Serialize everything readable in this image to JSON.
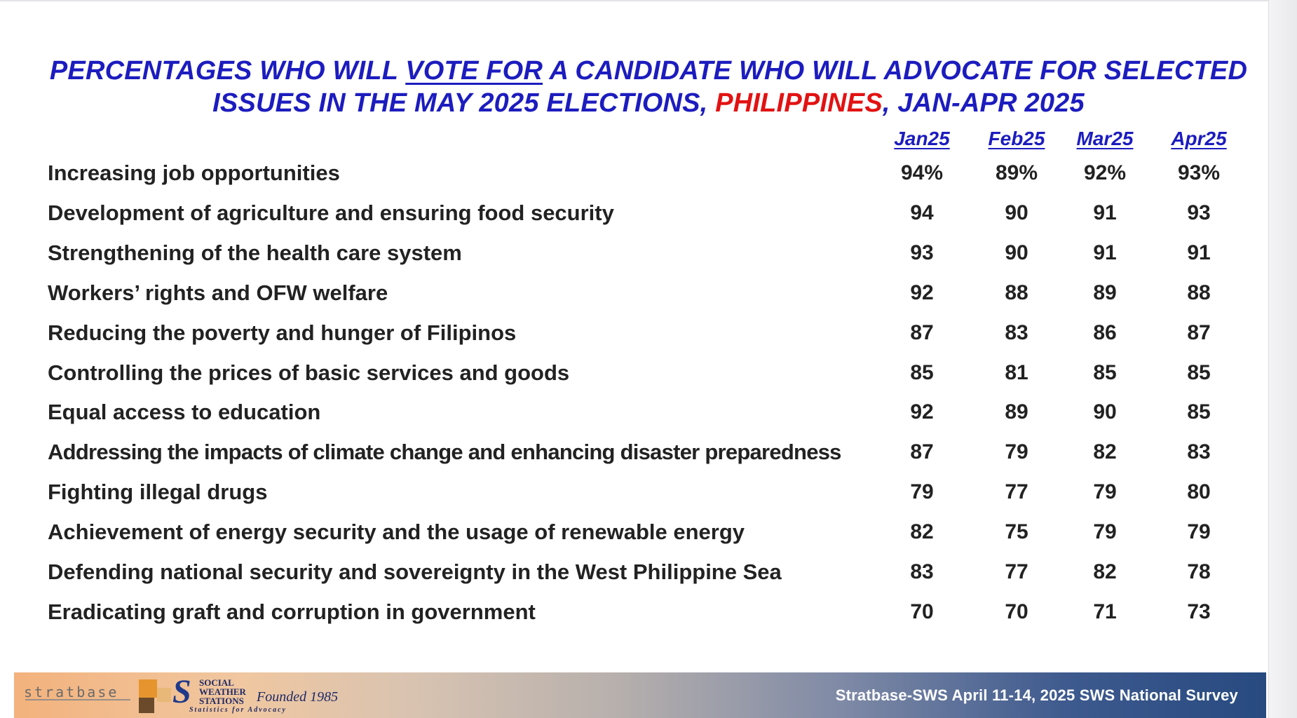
{
  "title": {
    "line1_pre": "PERCENTAGES WHO WILL ",
    "line1_underlined": "VOTE FOR",
    "line1_post": " A CANDIDATE WHO WILL ADVOCATE FOR SELECTED",
    "line2_pre": "ISSUES IN THE MAY 2025 ELECTIONS, ",
    "line2_highlight": "PHILIPPINES",
    "line2_post": ", JAN-APR 2025"
  },
  "colors": {
    "title_blue": "#1c1cbf",
    "highlight_red": "#e21212",
    "text_dark": "#222222",
    "footer_dark_blue": "#274a80",
    "footer_orange": "#f3b27d"
  },
  "chart_data": {
    "type": "table",
    "columns": [
      "Jan25",
      "Feb25",
      "Mar25",
      "Apr25"
    ],
    "rows": [
      {
        "label": "Increasing job opportunities",
        "values": [
          "94%",
          "89%",
          "92%",
          "93%"
        ]
      },
      {
        "label": "Development of agriculture and ensuring food security",
        "values": [
          "94",
          "90",
          "91",
          "93"
        ]
      },
      {
        "label": "Strengthening of the health care system",
        "values": [
          "93",
          "90",
          "91",
          "91"
        ]
      },
      {
        "label": "Workers’ rights and OFW welfare",
        "values": [
          "92",
          "88",
          "89",
          "88"
        ]
      },
      {
        "label": "Reducing the poverty and hunger of Filipinos",
        "values": [
          "87",
          "83",
          "86",
          "87"
        ]
      },
      {
        "label": "Controlling the prices of basic services and goods",
        "values": [
          "85",
          "81",
          "85",
          "85"
        ]
      },
      {
        "label": "Equal access to education",
        "values": [
          "92",
          "89",
          "90",
          "85"
        ]
      },
      {
        "label": "Addressing the impacts of climate change and enhancing disaster preparedness",
        "values": [
          "87",
          "79",
          "82",
          "83"
        ]
      },
      {
        "label": "Fighting illegal drugs",
        "values": [
          "79",
          "77",
          "79",
          "80"
        ]
      },
      {
        "label": "Achievement of energy security and the usage of renewable energy",
        "values": [
          "82",
          "75",
          "79",
          "79"
        ]
      },
      {
        "label": "Defending national security and sovereignty in the West Philippine Sea",
        "values": [
          "83",
          "77",
          "82",
          "78"
        ]
      },
      {
        "label": "Eradicating graft and corruption in government",
        "values": [
          "70",
          "70",
          "71",
          "73"
        ]
      }
    ]
  },
  "footer": {
    "stratbase_logo": "stratbase",
    "sws_logo_letter": "S",
    "sws_logo_lines": [
      "SOCIAL",
      "WEATHER",
      "STATIONS"
    ],
    "sws_founded": "Founded 1985",
    "sws_tagline": "Statistics for Advocacy",
    "source": "Stratbase-SWS April 11-14, 2025 SWS National Survey"
  }
}
